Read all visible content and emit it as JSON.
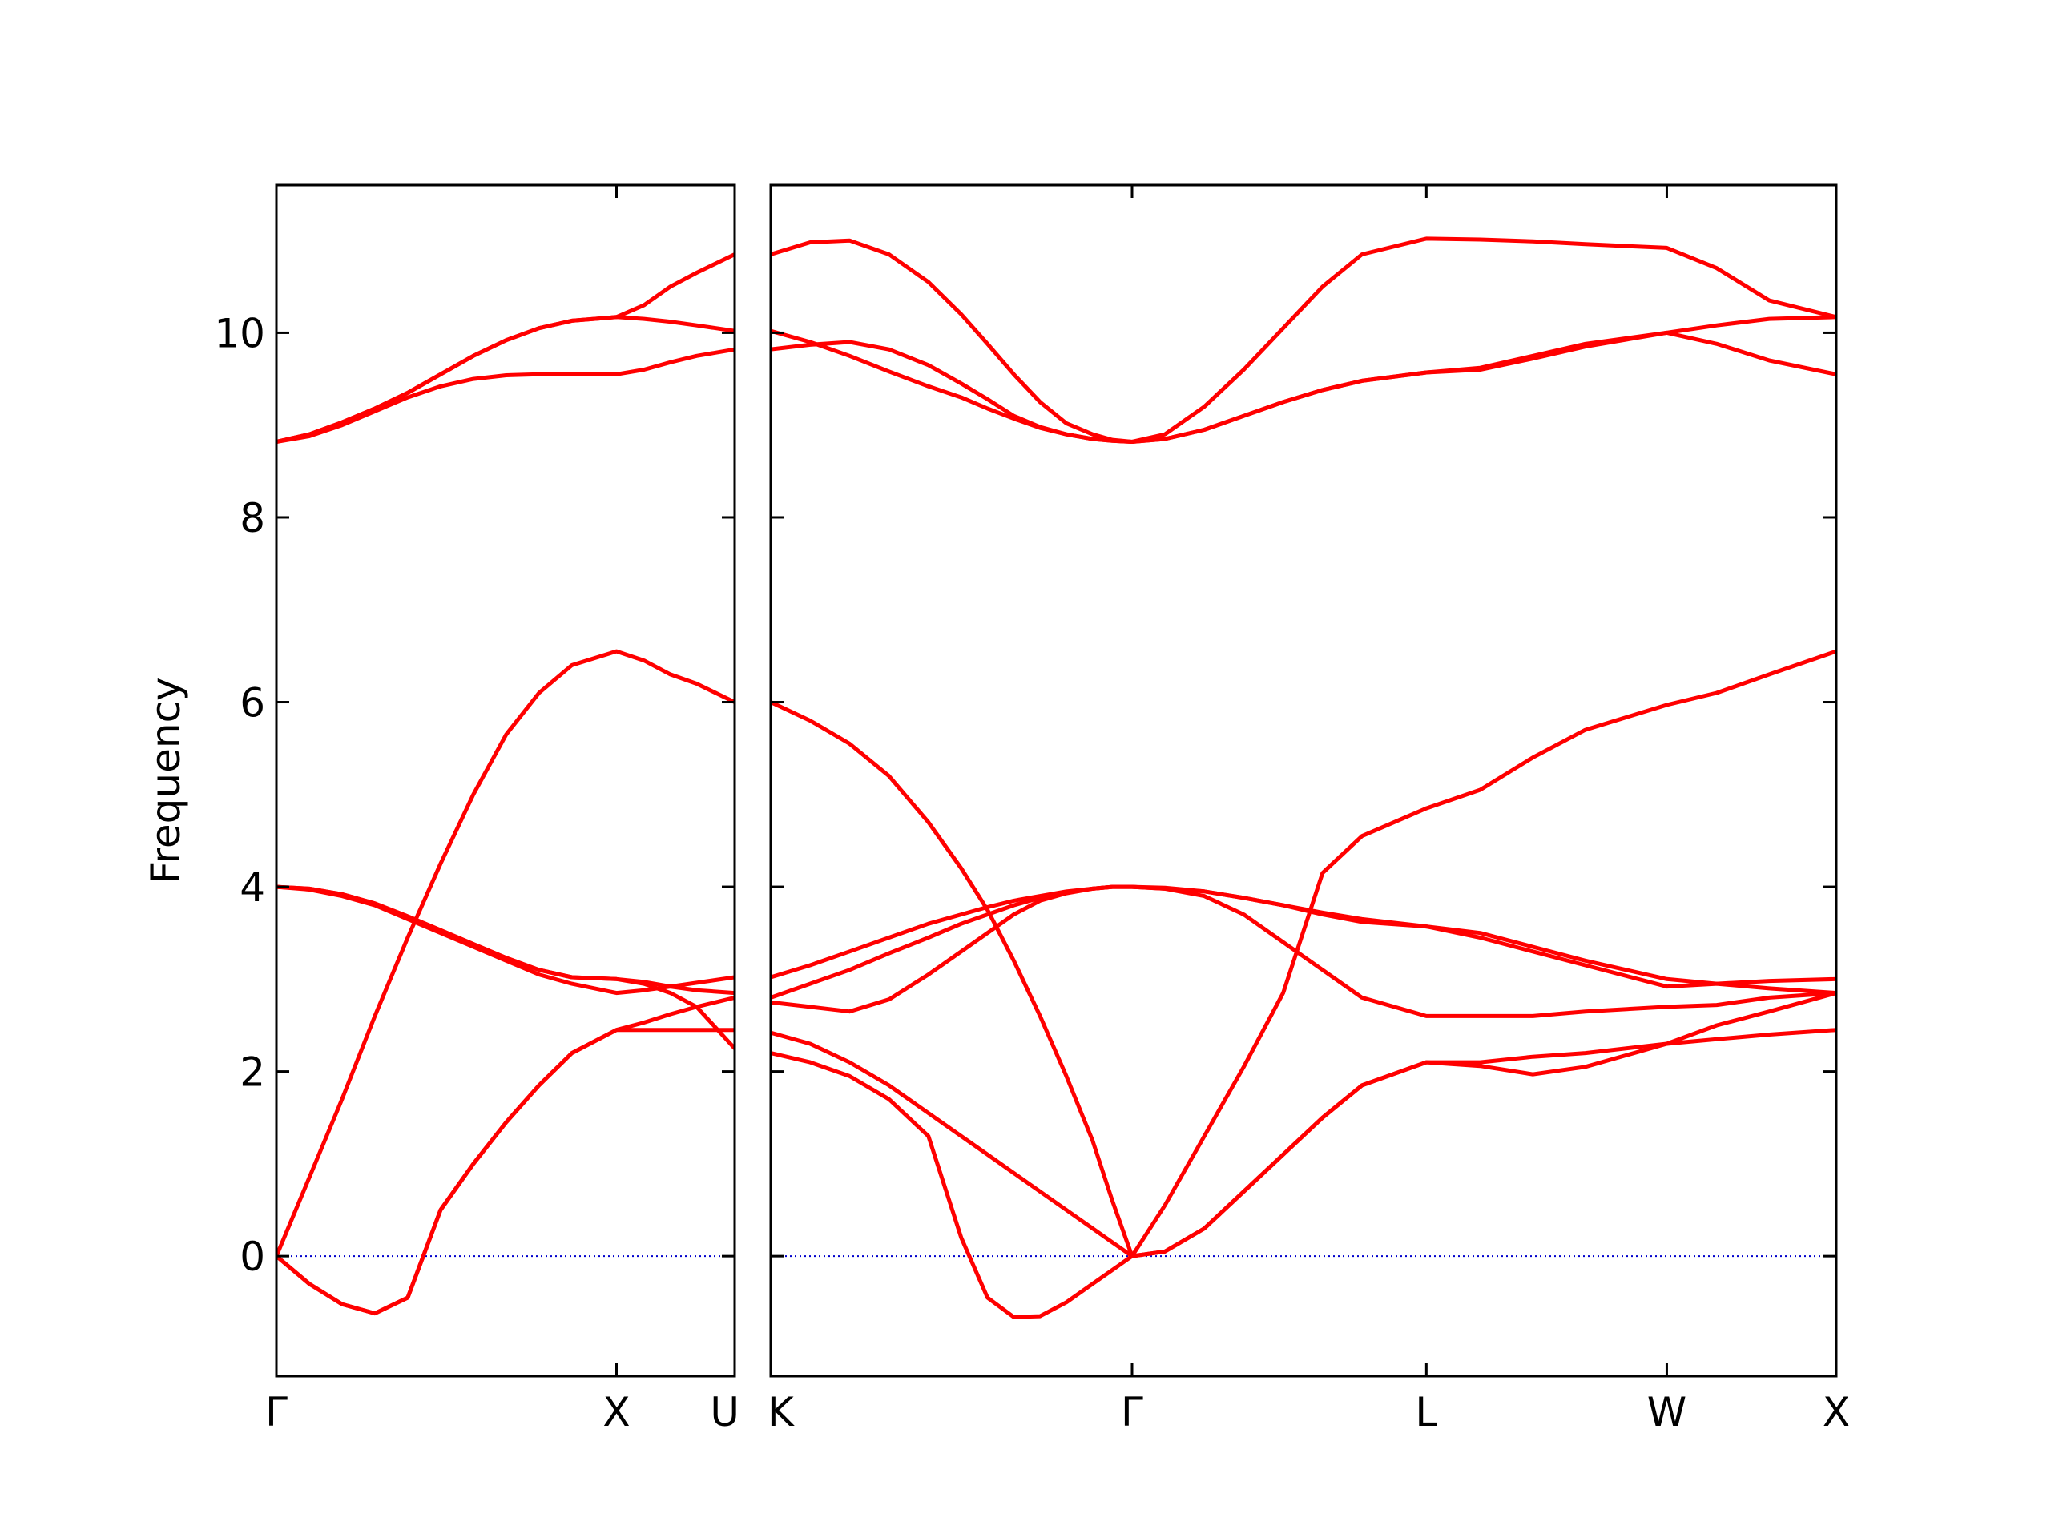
{
  "chart_data": [
    {
      "type": "line",
      "ylabel": "Frequency",
      "x": [
        0,
        0.25,
        0.5,
        0.75,
        1.0,
        1.25,
        1.5,
        1.75,
        2.0,
        2.25,
        2.59,
        2.8,
        3.0,
        3.2,
        3.49
      ],
      "xlim": [
        0,
        3.49
      ],
      "xticks": [
        {
          "value": 0,
          "label": "Γ"
        },
        {
          "value": 2.59,
          "label": "X"
        },
        {
          "value": 3.49,
          "label": "U"
        }
      ],
      "ylim": [
        -1.3,
        11.6
      ],
      "yticks": [
        0,
        2,
        4,
        6,
        8,
        10
      ],
      "show_ytick_labels": true,
      "hline": 0,
      "hline_color": "#0000cc",
      "series": [
        {
          "color": "#ff0000",
          "values": [
            0,
            -0.3,
            -0.52,
            -0.62,
            -0.45,
            0.5,
            1.0,
            1.45,
            1.85,
            2.2,
            2.45,
            2.45,
            2.45,
            2.45,
            2.45
          ]
        },
        {
          "color": "#ff0000",
          "values": [
            0,
            -0.3,
            -0.52,
            -0.62,
            -0.45,
            0.5,
            1.0,
            1.45,
            1.85,
            2.2,
            2.45,
            2.53,
            2.62,
            2.7,
            2.8
          ]
        },
        {
          "color": "#ff0000",
          "values": [
            0,
            0.85,
            1.7,
            2.6,
            3.45,
            4.25,
            5.0,
            5.65,
            6.1,
            6.4,
            6.55,
            6.45,
            6.3,
            6.2,
            6.0
          ]
        },
        {
          "color": "#ff0000",
          "values": [
            4.0,
            3.97,
            3.9,
            3.8,
            3.65,
            3.5,
            3.35,
            3.2,
            3.05,
            2.95,
            2.85,
            2.88,
            2.92,
            2.96,
            3.02
          ]
        },
        {
          "color": "#ff0000",
          "values": [
            4.0,
            3.98,
            3.92,
            3.82,
            3.68,
            3.53,
            3.38,
            3.23,
            3.1,
            3.02,
            3.0,
            2.95,
            2.85,
            2.7,
            2.25
          ]
        },
        {
          "color": "#ff0000",
          "values": [
            4.0,
            3.98,
            3.92,
            3.82,
            3.68,
            3.53,
            3.38,
            3.23,
            3.1,
            3.02,
            3.0,
            2.97,
            2.92,
            2.88,
            2.85
          ]
        },
        {
          "color": "#ff0000",
          "values": [
            8.82,
            8.88,
            9.0,
            9.15,
            9.3,
            9.42,
            9.5,
            9.54,
            9.55,
            9.55,
            9.55,
            9.6,
            9.68,
            9.75,
            9.82
          ]
        },
        {
          "color": "#ff0000",
          "values": [
            8.82,
            8.9,
            9.03,
            9.18,
            9.35,
            9.55,
            9.75,
            9.92,
            10.05,
            10.13,
            10.17,
            10.15,
            10.12,
            10.08,
            10.02
          ]
        },
        {
          "color": "#ff0000",
          "values": [
            8.82,
            8.9,
            9.03,
            9.18,
            9.35,
            9.55,
            9.75,
            9.92,
            10.05,
            10.13,
            10.17,
            10.3,
            10.5,
            10.65,
            10.85
          ]
        }
      ]
    },
    {
      "type": "line",
      "x": [
        0,
        0.3,
        0.6,
        0.9,
        1.2,
        1.45,
        1.65,
        1.85,
        2.05,
        2.25,
        2.45,
        2.6,
        2.75,
        3.0,
        3.3,
        3.6,
        3.9,
        4.2,
        4.5,
        4.99,
        5.4,
        5.8,
        6.2,
        6.82,
        7.2,
        7.6,
        8.11
      ],
      "xlim": [
        0,
        8.11
      ],
      "xticks": [
        {
          "value": 0,
          "label": "K"
        },
        {
          "value": 2.75,
          "label": "Γ"
        },
        {
          "value": 4.99,
          "label": "L"
        },
        {
          "value": 6.82,
          "label": "W"
        },
        {
          "value": 8.11,
          "label": "X"
        }
      ],
      "ylim": [
        -1.3,
        11.6
      ],
      "yticks": [
        0,
        2,
        4,
        6,
        8,
        10
      ],
      "show_ytick_labels": false,
      "hline": 0,
      "hline_color": "#0000cc",
      "series": [
        {
          "color": "#ff0000",
          "values": [
            2.2,
            2.1,
            1.95,
            1.7,
            1.3,
            0.2,
            -0.45,
            -0.66,
            -0.65,
            -0.5,
            -0.3,
            -0.15,
            0,
            0.05,
            0.3,
            0.7,
            1.1,
            1.5,
            1.85,
            2.1,
            2.1,
            2.16,
            2.2,
            2.3,
            2.35,
            2.4,
            2.45
          ]
        },
        {
          "color": "#ff0000",
          "values": [
            2.42,
            2.3,
            2.1,
            1.85,
            1.55,
            1.3,
            1.1,
            0.9,
            0.7,
            0.5,
            0.3,
            0.15,
            0,
            0.05,
            0.3,
            0.7,
            1.1,
            1.5,
            1.85,
            2.1,
            2.06,
            1.97,
            2.05,
            2.3,
            2.5,
            2.65,
            2.85
          ]
        },
        {
          "color": "#ff0000",
          "values": [
            6.0,
            5.8,
            5.55,
            5.2,
            4.7,
            4.2,
            3.75,
            3.2,
            2.6,
            1.95,
            1.25,
            0.6,
            0,
            0.55,
            1.3,
            2.05,
            2.85,
            4.15,
            4.55,
            4.85,
            5.05,
            5.4,
            5.7,
            5.97,
            6.1,
            6.3,
            6.55
          ]
        },
        {
          "color": "#ff0000",
          "values": [
            2.75,
            2.7,
            2.65,
            2.78,
            3.05,
            3.3,
            3.5,
            3.7,
            3.85,
            3.93,
            3.98,
            4.0,
            4.0,
            3.98,
            3.9,
            3.7,
            3.4,
            3.1,
            2.8,
            2.6,
            2.6,
            2.6,
            2.65,
            2.7,
            2.72,
            2.8,
            2.85
          ]
        },
        {
          "color": "#ff0000",
          "values": [
            2.8,
            2.95,
            3.1,
            3.28,
            3.45,
            3.6,
            3.7,
            3.8,
            3.88,
            3.94,
            3.98,
            4.0,
            4.0,
            3.98,
            3.95,
            3.88,
            3.8,
            3.7,
            3.62,
            3.57,
            3.5,
            3.35,
            3.2,
            3.0,
            2.95,
            2.9,
            2.85
          ]
        },
        {
          "color": "#ff0000",
          "values": [
            3.02,
            3.15,
            3.3,
            3.45,
            3.6,
            3.7,
            3.78,
            3.85,
            3.9,
            3.95,
            3.98,
            4.0,
            4.0,
            3.99,
            3.95,
            3.88,
            3.8,
            3.72,
            3.65,
            3.57,
            3.45,
            3.3,
            3.15,
            2.92,
            2.95,
            2.98,
            3.0
          ]
        },
        {
          "color": "#ff0000",
          "values": [
            9.82,
            9.87,
            9.9,
            9.82,
            9.65,
            9.45,
            9.28,
            9.1,
            8.98,
            8.9,
            8.85,
            8.83,
            8.82,
            8.85,
            8.95,
            9.1,
            9.25,
            9.38,
            9.48,
            9.57,
            9.62,
            9.75,
            9.88,
            10.0,
            10.08,
            10.15,
            10.17
          ]
        },
        {
          "color": "#ff0000",
          "values": [
            10.02,
            9.9,
            9.75,
            9.58,
            9.42,
            9.3,
            9.18,
            9.07,
            8.97,
            8.9,
            8.85,
            8.83,
            8.82,
            8.85,
            8.95,
            9.1,
            9.25,
            9.38,
            9.48,
            9.57,
            9.6,
            9.72,
            9.85,
            10.0,
            9.88,
            9.7,
            9.55
          ]
        },
        {
          "color": "#ff0000",
          "values": [
            10.85,
            10.98,
            11.0,
            10.85,
            10.55,
            10.2,
            9.88,
            9.55,
            9.25,
            9.02,
            8.9,
            8.84,
            8.82,
            8.9,
            9.2,
            9.6,
            10.05,
            10.5,
            10.85,
            11.02,
            11.01,
            10.99,
            10.96,
            10.92,
            10.7,
            10.35,
            10.17
          ]
        }
      ]
    }
  ]
}
